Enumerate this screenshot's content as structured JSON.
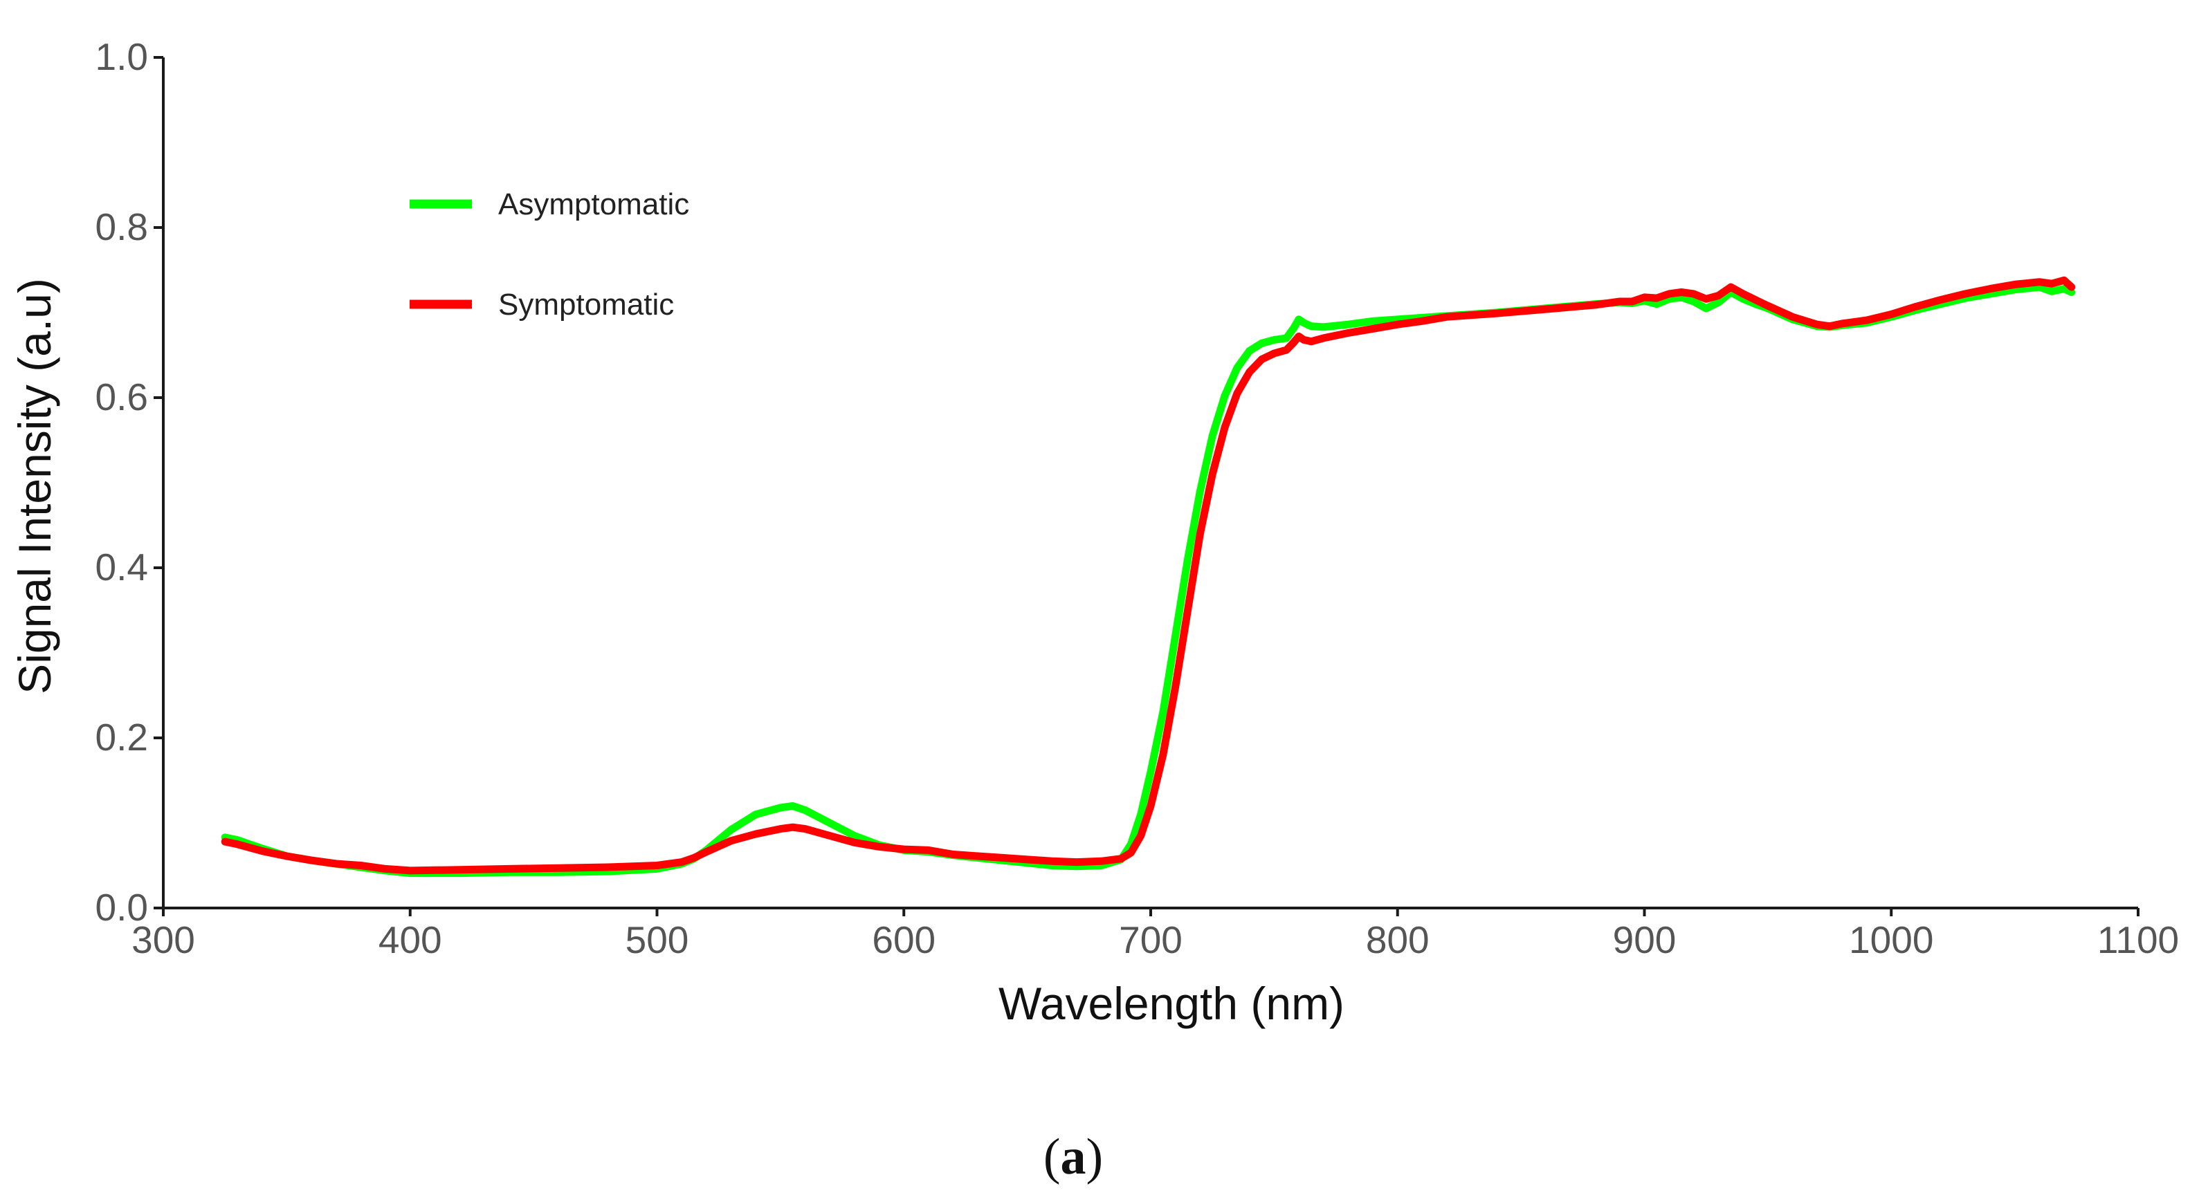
{
  "chart_data": {
    "type": "line",
    "title": "",
    "xlabel": "Wavelength (nm)",
    "ylabel": "Signal Intensity (a.u)",
    "xlim": [
      300,
      1100
    ],
    "ylim": [
      0.0,
      1.0
    ],
    "x_ticks": [
      "300",
      "400",
      "500",
      "600",
      "700",
      "800",
      "900",
      "1000",
      "1100"
    ],
    "y_ticks": [
      "0.0",
      "0.2",
      "0.4",
      "0.6",
      "0.8",
      "1.0"
    ],
    "legend": {
      "placement": "top-left"
    },
    "panel_label": {
      "open": "(",
      "letter": "a",
      "close": ")"
    },
    "series": [
      {
        "name": "Asymptomatic",
        "color": "#00ff00",
        "x": [
          325,
          330,
          340,
          350,
          360,
          370,
          380,
          390,
          400,
          420,
          440,
          460,
          480,
          500,
          510,
          515,
          520,
          530,
          540,
          550,
          555,
          560,
          570,
          580,
          590,
          600,
          610,
          620,
          630,
          640,
          650,
          660,
          670,
          680,
          688,
          692,
          696,
          700,
          705,
          710,
          715,
          720,
          725,
          730,
          735,
          740,
          745,
          750,
          755,
          758,
          760,
          762,
          765,
          770,
          780,
          790,
          800,
          810,
          820,
          840,
          860,
          880,
          890,
          895,
          900,
          905,
          910,
          915,
          920,
          925,
          930,
          935,
          940,
          945,
          950,
          960,
          970,
          975,
          980,
          990,
          1000,
          1010,
          1020,
          1030,
          1040,
          1050,
          1060,
          1065,
          1070,
          1073
        ],
        "values": [
          0.083,
          0.08,
          0.07,
          0.061,
          0.056,
          0.052,
          0.048,
          0.044,
          0.041,
          0.041,
          0.042,
          0.042,
          0.043,
          0.046,
          0.052,
          0.058,
          0.068,
          0.092,
          0.11,
          0.118,
          0.12,
          0.115,
          0.1,
          0.085,
          0.074,
          0.068,
          0.066,
          0.062,
          0.059,
          0.056,
          0.053,
          0.05,
          0.049,
          0.05,
          0.057,
          0.075,
          0.11,
          0.16,
          0.23,
          0.32,
          0.41,
          0.49,
          0.555,
          0.602,
          0.635,
          0.655,
          0.664,
          0.668,
          0.67,
          0.682,
          0.692,
          0.688,
          0.684,
          0.683,
          0.686,
          0.69,
          0.692,
          0.694,
          0.696,
          0.7,
          0.705,
          0.71,
          0.712,
          0.711,
          0.714,
          0.71,
          0.716,
          0.718,
          0.713,
          0.705,
          0.712,
          0.724,
          0.716,
          0.71,
          0.705,
          0.692,
          0.684,
          0.683,
          0.685,
          0.688,
          0.695,
          0.703,
          0.71,
          0.717,
          0.722,
          0.727,
          0.73,
          0.725,
          0.728,
          0.724
        ]
      },
      {
        "name": "Symptomatic",
        "color": "#ff0000",
        "x": [
          325,
          330,
          340,
          350,
          360,
          370,
          380,
          390,
          400,
          420,
          440,
          460,
          480,
          500,
          510,
          515,
          520,
          530,
          540,
          550,
          555,
          560,
          570,
          580,
          590,
          600,
          610,
          620,
          630,
          640,
          650,
          660,
          670,
          680,
          688,
          692,
          696,
          700,
          705,
          710,
          715,
          720,
          725,
          730,
          735,
          740,
          745,
          750,
          755,
          758,
          760,
          762,
          765,
          770,
          780,
          790,
          800,
          810,
          820,
          840,
          860,
          880,
          890,
          895,
          900,
          905,
          910,
          915,
          920,
          925,
          930,
          935,
          940,
          945,
          950,
          960,
          970,
          975,
          980,
          990,
          1000,
          1010,
          1020,
          1030,
          1040,
          1050,
          1060,
          1065,
          1070,
          1073
        ],
        "values": [
          0.078,
          0.075,
          0.067,
          0.061,
          0.056,
          0.052,
          0.05,
          0.046,
          0.044,
          0.045,
          0.046,
          0.047,
          0.048,
          0.05,
          0.054,
          0.059,
          0.066,
          0.079,
          0.087,
          0.093,
          0.095,
          0.093,
          0.085,
          0.077,
          0.072,
          0.069,
          0.068,
          0.063,
          0.061,
          0.059,
          0.057,
          0.055,
          0.054,
          0.055,
          0.058,
          0.065,
          0.085,
          0.12,
          0.18,
          0.26,
          0.35,
          0.44,
          0.51,
          0.565,
          0.605,
          0.63,
          0.645,
          0.652,
          0.656,
          0.665,
          0.672,
          0.668,
          0.666,
          0.67,
          0.676,
          0.681,
          0.686,
          0.69,
          0.695,
          0.699,
          0.704,
          0.709,
          0.713,
          0.713,
          0.718,
          0.717,
          0.722,
          0.724,
          0.722,
          0.716,
          0.72,
          0.73,
          0.722,
          0.715,
          0.708,
          0.695,
          0.686,
          0.684,
          0.687,
          0.691,
          0.698,
          0.707,
          0.715,
          0.722,
          0.728,
          0.733,
          0.736,
          0.734,
          0.738,
          0.73
        ]
      }
    ]
  }
}
